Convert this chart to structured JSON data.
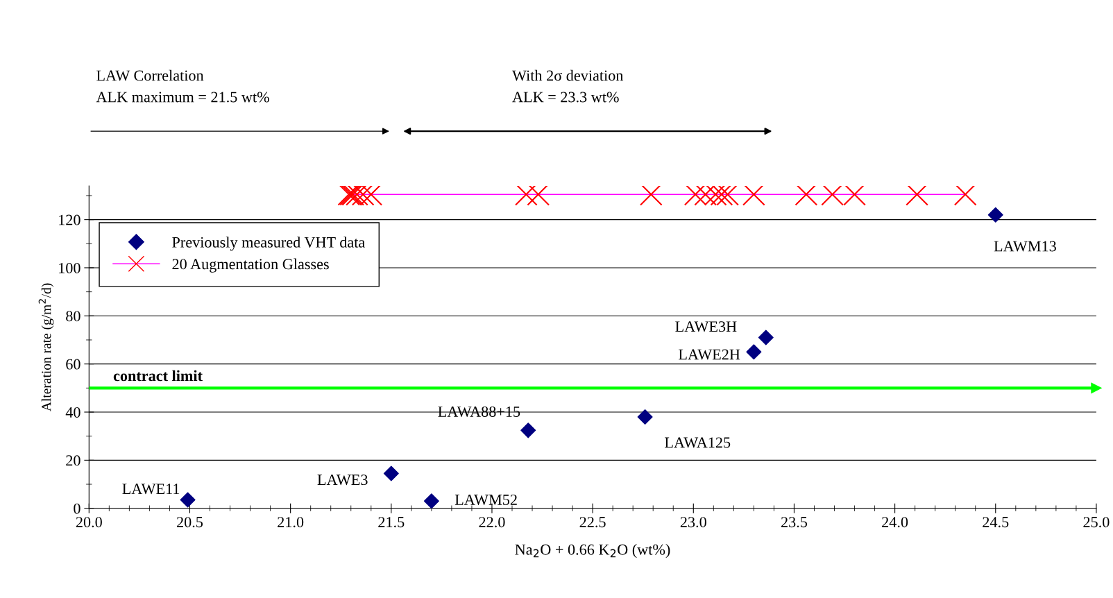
{
  "chart_data": {
    "type": "scatter",
    "xlabel": "Na$_{2}$O + 0.66 K$_{2}$O (wt%)",
    "ylabel": "Alteration rate (g/m$^{2}$/d)",
    "xlim": [
      20.0,
      25.0
    ],
    "xticks": [
      {
        "value": 20,
        "label": "20.0"
      },
      20.5,
      {
        "value": 21,
        "label": "21.0"
      },
      21.5,
      {
        "value": 22,
        "label": "22.0"
      },
      22.5,
      {
        "value": 23,
        "label": "23.0"
      },
      23.5,
      {
        "value": 24,
        "label": "24.0"
      },
      24.5,
      {
        "value": 25,
        "label": "25.0"
      }
    ],
    "ylim": [
      0,
      134
    ],
    "yticks": [
      0,
      20,
      40,
      60,
      80,
      100,
      120
    ],
    "grid": "y",
    "legend": "top left",
    "series": [
      {
        "name": "Previously measured VHT data",
        "type": "scatter",
        "marker": "diamond",
        "color": "#000080",
        "x": [
          20.49,
          21.5,
          21.7,
          22.18,
          22.76,
          23.3,
          23.36,
          24.5
        ],
        "values": [
          3.5,
          14.5,
          3,
          32.4,
          38,
          65,
          71,
          122
        ]
      },
      {
        "name": "20 Augmentation Glasses",
        "type": "line",
        "marker": "cross",
        "color": "#ff0000",
        "x": [
          21.29,
          21.3,
          21.31,
          21.33,
          21.36,
          21.4,
          22.17,
          22.23,
          22.79,
          23.01,
          23.06,
          23.11,
          23.14,
          23.17,
          23.3,
          23.56,
          23.69,
          23.8,
          24.11,
          24.35
        ],
        "values": [
          130.5,
          130.5,
          130.5,
          130.5,
          130.5,
          130.5,
          130.5,
          130.5,
          130.5,
          130.5,
          130.5,
          130.5,
          130.5,
          130.5,
          130.5,
          130.5,
          130.5,
          130.5,
          130.5,
          130.5
        ]
      }
    ],
    "ref_lines": [
      {
        "axis": "y",
        "value": 50,
        "label": "contract limit",
        "color": "#00ff00"
      }
    ],
    "annotations": [
      {
        "text": "LAWE11",
        "x": 20.49,
        "y": 3.5
      },
      {
        "text": "LAWE3",
        "x": 21.5,
        "y": 14.5
      },
      {
        "text": "LAWM52",
        "x": 21.7,
        "y": 3
      },
      {
        "text": "LAWA88+15",
        "x": 22.18,
        "y": 32.4
      },
      {
        "text": "LAWA125",
        "x": 22.76,
        "y": 38
      },
      {
        "text": "LAWE2H",
        "x": 23.3,
        "y": 65
      },
      {
        "text": "LAWE3H",
        "x": 23.36,
        "y": 71
      },
      {
        "text": "LAWM13",
        "x": 24.5,
        "y": 122
      },
      "LAW Correlation\nALK maximum = 21.5 wt%",
      "With 2σ deviation\nALK = 23.3 wt%"
    ]
  }
}
